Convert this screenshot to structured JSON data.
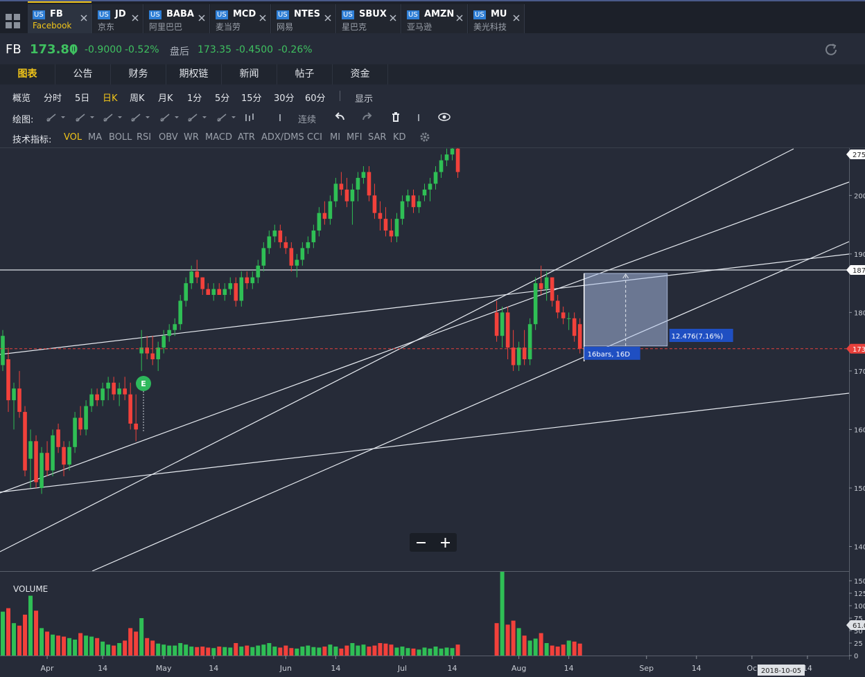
{
  "tabs": [
    {
      "market": "US",
      "symbol": "FB",
      "name": "Facebook"
    },
    {
      "market": "US",
      "symbol": "JD",
      "name": "京东"
    },
    {
      "market": "US",
      "symbol": "BABA",
      "name": "阿里巴巴"
    },
    {
      "market": "US",
      "symbol": "MCD",
      "name": "麦当劳"
    },
    {
      "market": "US",
      "symbol": "NTES",
      "name": "网易"
    },
    {
      "market": "US",
      "symbol": "SBUX",
      "name": "星巴克"
    },
    {
      "market": "US",
      "symbol": "AMZN",
      "name": "亚马逊"
    },
    {
      "market": "US",
      "symbol": "MU",
      "name": "美光科技"
    }
  ],
  "quote": {
    "symbol": "FB",
    "price": "173.80",
    "change": "-0.9000",
    "change_pct": "-0.52%",
    "after_label": "盘后",
    "after_price": "173.35",
    "after_change": "-0.4500",
    "after_pct": "-0.26%"
  },
  "menu": [
    "图表",
    "公告",
    "财务",
    "期权链",
    "新闻",
    "帖子",
    "资金"
  ],
  "periods": [
    "概览",
    "分时",
    "5日",
    "日K",
    "周K",
    "月K",
    "1分",
    "5分",
    "15分",
    "30分",
    "60分"
  ],
  "display": "显示",
  "draw_label": "绘图:",
  "continuous": "连续",
  "indicator_label": "技术指标:",
  "indicators": [
    "VOL",
    "MA",
    "BOLL",
    "RSI",
    "OBV",
    "WR",
    "MACD",
    "ATR",
    "ADX/DMS",
    "CCI",
    "MI",
    "MFI",
    "SAR",
    "KD"
  ],
  "chart_data": {
    "type": "candlestick",
    "up_color": "#2fbf55",
    "down_color": "#f2413b",
    "ylim": [
      135.8,
      208.2
    ],
    "yticks": [
      140,
      150,
      160,
      170,
      180,
      190,
      200
    ],
    "xlim": [
      -0.5,
      152.5
    ],
    "xticks": [
      {
        "value": 8,
        "label": "Apr"
      },
      {
        "value": 18,
        "label": "14"
      },
      {
        "value": 29,
        "label": "May"
      },
      {
        "value": 38,
        "label": "14"
      },
      {
        "value": 51,
        "label": "Jun"
      },
      {
        "value": 60,
        "label": "14"
      },
      {
        "value": 72,
        "label": "Jul"
      },
      {
        "value": 81,
        "label": "14"
      },
      {
        "value": 93,
        "label": "Aug"
      },
      {
        "value": 102,
        "label": "14"
      },
      {
        "value": 116,
        "label": "Sep"
      },
      {
        "value": 125,
        "label": "14"
      },
      {
        "value": 135,
        "label": "Oc"
      },
      {
        "value": 145,
        "label": "14"
      }
    ],
    "candles": [
      [
        171,
        177,
        170,
        176
      ],
      [
        172,
        174,
        163,
        165
      ],
      [
        165,
        168,
        160,
        167
      ],
      [
        167,
        170,
        162,
        163
      ],
      [
        163,
        164,
        152,
        153
      ],
      [
        155,
        160,
        150,
        158
      ],
      [
        158,
        159,
        150,
        151
      ],
      [
        150,
        157,
        149,
        156
      ],
      [
        156,
        158,
        152,
        153
      ],
      [
        153,
        160,
        152,
        159
      ],
      [
        160,
        161,
        156,
        157
      ],
      [
        157,
        158,
        152,
        154
      ],
      [
        154,
        158,
        153,
        157
      ],
      [
        157,
        163,
        156,
        162
      ],
      [
        162,
        164,
        159,
        160
      ],
      [
        160,
        165,
        159,
        164
      ],
      [
        164,
        167,
        163,
        166
      ],
      [
        166,
        167,
        164,
        165
      ],
      [
        165,
        168,
        164,
        167
      ],
      [
        167,
        169,
        165,
        168
      ],
      [
        168,
        169,
        165,
        166
      ],
      [
        166,
        168,
        164,
        167
      ],
      [
        167,
        169,
        165,
        166
      ],
      [
        166,
        168,
        160,
        161
      ],
      [
        161,
        166,
        158,
        160
      ],
      [
        173,
        177,
        170,
        174
      ],
      [
        174,
        176,
        172,
        173
      ],
      [
        173,
        176,
        171,
        172
      ],
      [
        172,
        175,
        170,
        174
      ],
      [
        174,
        177,
        173,
        176
      ],
      [
        176,
        178,
        175,
        177
      ],
      [
        177,
        179,
        176,
        178
      ],
      [
        178,
        183,
        177,
        182
      ],
      [
        182,
        186,
        181,
        185
      ],
      [
        185,
        188,
        184,
        187
      ],
      [
        187,
        189,
        185,
        186
      ],
      [
        186,
        186,
        183,
        184
      ],
      [
        184,
        185,
        183,
        183
      ],
      [
        183,
        185,
        182,
        184
      ],
      [
        184,
        185,
        183,
        183
      ],
      [
        183,
        185,
        182,
        184
      ],
      [
        184,
        186,
        183,
        185
      ],
      [
        185,
        186,
        181,
        182
      ],
      [
        182,
        187,
        181,
        186
      ],
      [
        186,
        187,
        184,
        185
      ],
      [
        185,
        187,
        184,
        186
      ],
      [
        186,
        189,
        185,
        188
      ],
      [
        188,
        192,
        187,
        191
      ],
      [
        191,
        194,
        190,
        193
      ],
      [
        193,
        195,
        192,
        194
      ],
      [
        194,
        195,
        191,
        192
      ],
      [
        192,
        193,
        190,
        191
      ],
      [
        191,
        192,
        187,
        188
      ],
      [
        188,
        190,
        186,
        189
      ],
      [
        189,
        192,
        188,
        191
      ],
      [
        191,
        193,
        190,
        192
      ],
      [
        192,
        195,
        191,
        194
      ],
      [
        194,
        198,
        193,
        197
      ],
      [
        197,
        199,
        195,
        196
      ],
      [
        196,
        200,
        195,
        199
      ],
      [
        199,
        203,
        198,
        202
      ],
      [
        202,
        204,
        200,
        201
      ],
      [
        201,
        203,
        198,
        199
      ],
      [
        199,
        202,
        195,
        201
      ],
      [
        201,
        204,
        199,
        203
      ],
      [
        203,
        205,
        202,
        204
      ],
      [
        204,
        205,
        199,
        200
      ],
      [
        200,
        202,
        196,
        197
      ],
      [
        197,
        199,
        194,
        196
      ],
      [
        196,
        198,
        193,
        194
      ],
      [
        194,
        196,
        192,
        193
      ],
      [
        193,
        197,
        192,
        196
      ],
      [
        196,
        200,
        195,
        199
      ],
      [
        199,
        201,
        198,
        200
      ],
      [
        200,
        201,
        197,
        198
      ],
      [
        198,
        200,
        197,
        199
      ],
      [
        200,
        202,
        199,
        201
      ],
      [
        201,
        203,
        199,
        202
      ],
      [
        202,
        205,
        201,
        204
      ],
      [
        204,
        207,
        203,
        206
      ],
      [
        206,
        208,
        205,
        207
      ],
      [
        207,
        209,
        206,
        208
      ],
      [
        208,
        209,
        203,
        204
      ],
      null,
      null,
      null,
      null,
      null,
      null,
      [
        180,
        182,
        175,
        176
      ],
      [
        176,
        181,
        174,
        180
      ],
      [
        180,
        181,
        172,
        174
      ],
      [
        174,
        177,
        170,
        171
      ],
      [
        171,
        175,
        170,
        174
      ],
      [
        174,
        177,
        171,
        172
      ],
      [
        172,
        179,
        171,
        178
      ],
      [
        178,
        186,
        177,
        185
      ],
      [
        185,
        188,
        183,
        184
      ],
      [
        184,
        187,
        182,
        186
      ],
      [
        186,
        186,
        181,
        182
      ],
      [
        182,
        183,
        179,
        180
      ],
      [
        180,
        181,
        178,
        179
      ],
      [
        179,
        180,
        177,
        179
      ],
      [
        179,
        180,
        175,
        176
      ],
      [
        178,
        179,
        173,
        173.8
      ]
    ],
    "volume": {
      "title": "VOLUME",
      "ylim": [
        0,
        168
      ],
      "yticks": [
        0,
        25,
        50,
        75,
        100,
        125,
        150
      ],
      "tag": "61.0",
      "values": [
        88,
        95,
        65,
        60,
        82,
        120,
        90,
        55,
        48,
        42,
        40,
        38,
        35,
        32,
        45,
        40,
        38,
        35,
        28,
        22,
        20,
        25,
        30,
        55,
        48,
        75,
        35,
        30,
        24,
        22,
        20,
        20,
        25,
        22,
        18,
        17,
        18,
        16,
        15,
        18,
        17,
        16,
        25,
        18,
        20,
        17,
        20,
        22,
        25,
        18,
        16,
        20,
        15,
        14,
        18,
        20,
        17,
        16,
        18,
        22,
        18,
        14,
        20,
        25,
        20,
        22,
        18,
        20,
        25,
        24,
        22,
        16,
        18,
        15,
        14,
        12,
        16,
        14,
        18,
        14,
        16,
        15,
        22,
        null,
        null,
        null,
        null,
        null,
        null,
        65,
        169,
        62,
        70,
        55,
        40,
        30,
        34,
        45,
        25,
        20,
        18,
        22,
        30,
        28,
        24
      ]
    },
    "price_tags": [
      "275",
      "187",
      "173"
    ],
    "annotations": [
      "12.476(7.16%)",
      "16bars, 16D"
    ],
    "earnings_marker": "E",
    "date_label": "2018-10-05"
  }
}
